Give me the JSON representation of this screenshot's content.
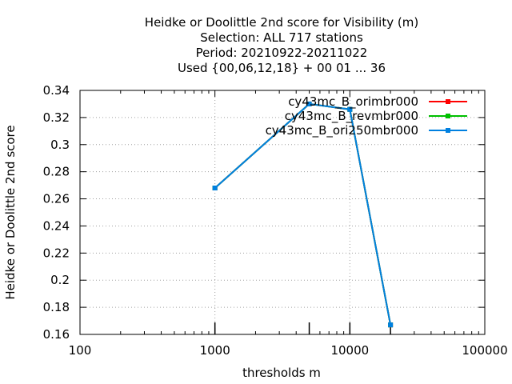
{
  "chart_data": {
    "type": "line",
    "title_lines": [
      "Heidke or Doolittle 2nd score  for Visibility (m)",
      "Selection: ALL     717 stations",
      "Period: 20210922-20211022",
      "Used {00,06,12,18} + 00 01 ... 36"
    ],
    "xlabel": "thresholds m",
    "ylabel": "Heidke or Doolittle 2nd score",
    "x_scale": "log",
    "xlim": [
      100,
      100000
    ],
    "ylim": [
      0.16,
      0.34
    ],
    "x_ticks": [
      100,
      1000,
      10000,
      100000
    ],
    "x_tick_labels": [
      "100",
      "1000",
      "10000",
      "100000"
    ],
    "y_ticks": [
      0.16,
      0.18,
      0.2,
      0.22,
      0.24,
      0.26,
      0.28,
      0.3,
      0.32,
      0.34
    ],
    "y_tick_labels": [
      "0.16",
      "0.18",
      "0.2",
      "0.22",
      "0.24",
      "0.26",
      "0.28",
      "0.3",
      "0.32",
      "0.34"
    ],
    "grid": true,
    "legend_position": "top-right",
    "x": [
      1000,
      5000,
      10000,
      20000
    ],
    "series": [
      {
        "name": "cy43mc_B_orimbr000",
        "color": "#ff0000",
        "values": [
          0.268,
          0.33,
          0.326,
          0.167
        ]
      },
      {
        "name": "cy43mc_B_revmbr000",
        "color": "#00c000",
        "values": [
          0.268,
          0.33,
          0.326,
          0.167
        ]
      },
      {
        "name": "cy43mc_B_ori250mbr000",
        "color": "#0080e0",
        "values": [
          0.268,
          0.33,
          0.326,
          0.167
        ]
      }
    ]
  }
}
